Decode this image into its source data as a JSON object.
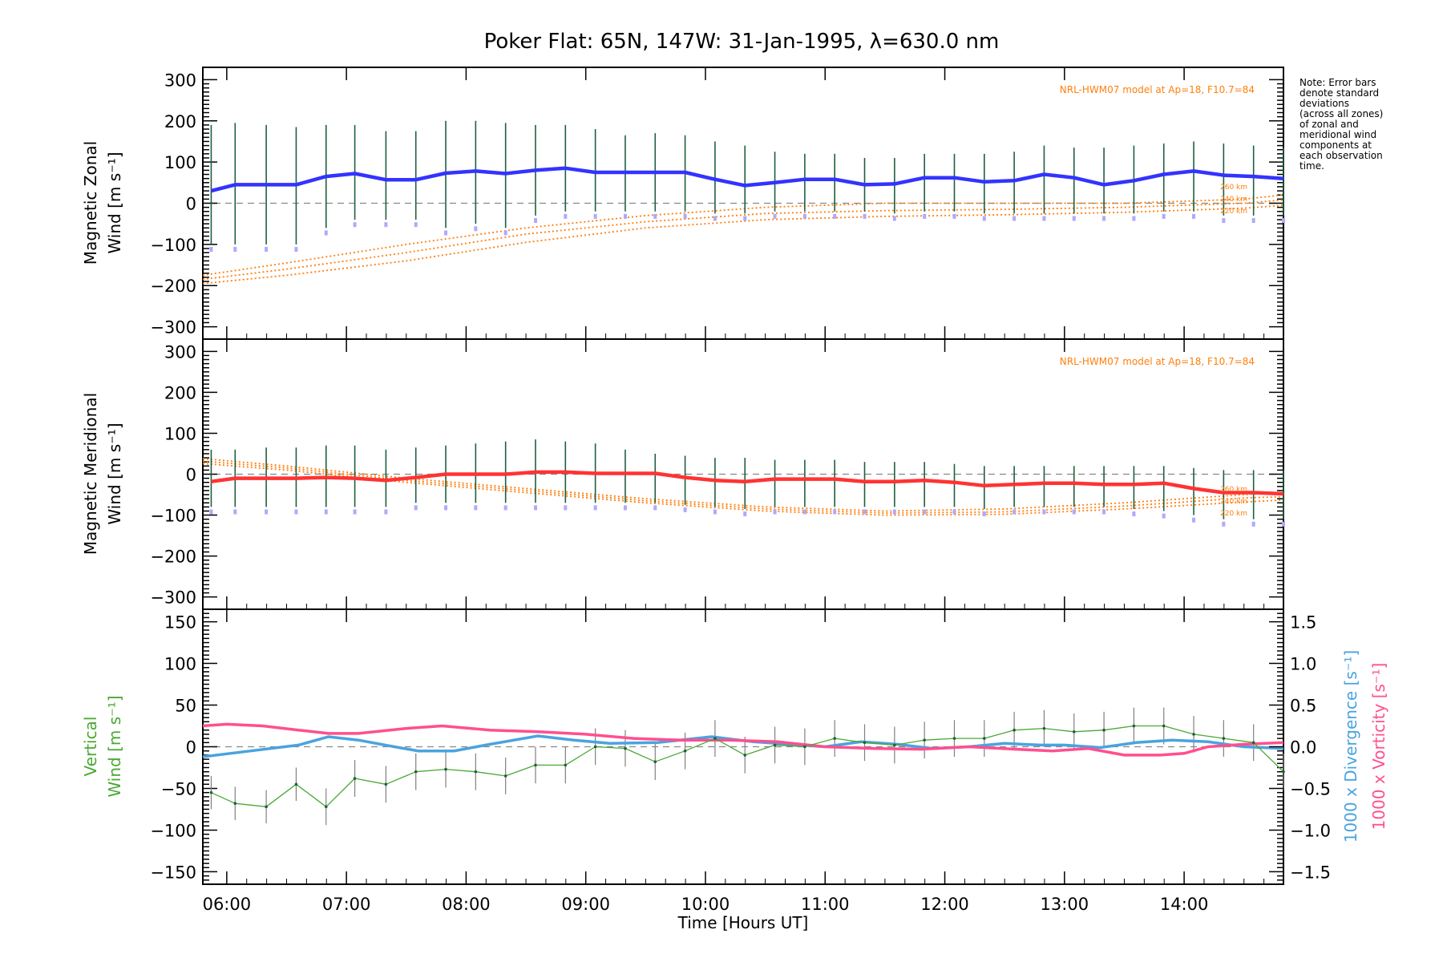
{
  "chart_data": [
    {
      "type": "line",
      "title": "Poker Flat: 65N, 147W: 31-Jan-1995, λ=630.0 nm",
      "ylabel_line1": "Magnetic Zonal",
      "ylabel_line2": "Wind [m s⁻¹]",
      "ylim": [
        -330,
        330
      ],
      "yticks": [
        "300",
        "200",
        "100",
        "0",
        "−100",
        "−200",
        "−300"
      ],
      "model_label": "NRL-HWM07 model at Ap=18, F10.7=84",
      "altitude_labels": [
        "260 km",
        "240 km",
        "220 km"
      ],
      "note": [
        "Note: Error bars",
        "denote standard",
        "deviations",
        "(across all zones)",
        "of zonal and",
        "meridional wind",
        "components at",
        "each observation",
        "time."
      ],
      "colors": {
        "wind": "#3333ff",
        "model": "#ff7f0e",
        "errorbar": "#1f5f3f",
        "zone_points": "#b0a8ff"
      },
      "series": [
        {
          "x": [
            5.87,
            6.07,
            6.33,
            6.58,
            6.83,
            7.07,
            7.33,
            7.58,
            7.83,
            8.08,
            8.33,
            8.58,
            8.83,
            9.08,
            9.33,
            9.58,
            9.83,
            10.08,
            10.33,
            10.58,
            10.83,
            11.08,
            11.33,
            11.58,
            11.83,
            12.08,
            12.33,
            12.58,
            12.83,
            13.08,
            13.33,
            13.58,
            13.83,
            14.08,
            14.33,
            14.58,
            14.83
          ],
          "values": [
            30,
            45,
            45,
            45,
            65,
            72,
            57,
            57,
            73,
            78,
            72,
            80,
            85,
            75,
            75,
            75,
            75,
            58,
            43,
            50,
            58,
            58,
            45,
            47,
            62,
            62,
            52,
            55,
            70,
            62,
            45,
            55,
            70,
            78,
            68,
            65,
            60
          ],
          "err_lo": [
            -100,
            -100,
            -100,
            -100,
            -60,
            -40,
            -40,
            -40,
            -60,
            -50,
            -60,
            -30,
            -20,
            -20,
            -20,
            -20,
            -20,
            -25,
            -25,
            -20,
            -20,
            -20,
            -20,
            -25,
            -20,
            -20,
            -25,
            -25,
            -25,
            -25,
            -25,
            -25,
            -20,
            -20,
            -30,
            -30,
            -30
          ],
          "err_hi": [
            190,
            195,
            190,
            185,
            190,
            190,
            175,
            175,
            200,
            200,
            195,
            190,
            190,
            180,
            165,
            170,
            165,
            150,
            140,
            125,
            120,
            120,
            110,
            110,
            120,
            120,
            120,
            125,
            140,
            135,
            135,
            140,
            145,
            150,
            145,
            140,
            135
          ]
        }
      ],
      "model": {
        "x": [
          5.8,
          6.5,
          7.5,
          8.5,
          9.5,
          10.5,
          11.5,
          12.5,
          13.5,
          14.5,
          14.83
        ],
        "alt_260": [
          -175,
          -145,
          -100,
          -60,
          -30,
          -10,
          0,
          0,
          0,
          10,
          20
        ],
        "alt_240": [
          -185,
          -160,
          -120,
          -75,
          -45,
          -25,
          -18,
          -15,
          -10,
          0,
          8
        ],
        "alt_220": [
          -195,
          -175,
          -140,
          -95,
          -60,
          -40,
          -32,
          -28,
          -22,
          -12,
          -5
        ]
      }
    },
    {
      "type": "line",
      "ylabel_line1": "Magnetic Meridional",
      "ylabel_line2": "Wind [m s⁻¹]",
      "ylim": [
        -330,
        330
      ],
      "yticks": [
        "300",
        "200",
        "100",
        "0",
        "−100",
        "−200",
        "−300"
      ],
      "model_label": "NRL-HWM07 model at Ap=18, F10.7=84",
      "altitude_labels": [
        "260 km",
        "240 km",
        "220 km"
      ],
      "colors": {
        "wind": "#ff3333",
        "model": "#ff7f0e",
        "errorbar": "#1f5f3f",
        "zone_points": "#b0a8ff"
      },
      "series": [
        {
          "x": [
            5.87,
            6.07,
            6.33,
            6.58,
            6.83,
            7.07,
            7.33,
            7.58,
            7.83,
            8.08,
            8.33,
            8.58,
            8.83,
            9.08,
            9.33,
            9.58,
            9.83,
            10.08,
            10.33,
            10.58,
            10.83,
            11.08,
            11.33,
            11.58,
            11.83,
            12.08,
            12.33,
            12.58,
            12.83,
            13.08,
            13.33,
            13.58,
            13.83,
            14.08,
            14.33,
            14.58,
            14.83
          ],
          "values": [
            -18,
            -10,
            -10,
            -10,
            -8,
            -10,
            -15,
            -8,
            0,
            0,
            0,
            5,
            5,
            2,
            2,
            2,
            -8,
            -15,
            -18,
            -12,
            -12,
            -12,
            -18,
            -18,
            -15,
            -20,
            -28,
            -25,
            -22,
            -22,
            -25,
            -25,
            -22,
            -35,
            -45,
            -45,
            -48
          ],
          "err_lo": [
            -80,
            -80,
            -80,
            -80,
            -80,
            -80,
            -80,
            -70,
            -70,
            -70,
            -70,
            -70,
            -70,
            -70,
            -70,
            -70,
            -75,
            -80,
            -85,
            -80,
            -80,
            -80,
            -80,
            -80,
            -80,
            -80,
            -85,
            -80,
            -80,
            -80,
            -80,
            -85,
            -90,
            -100,
            -110,
            -110,
            -110
          ],
          "err_hi": [
            60,
            60,
            65,
            65,
            70,
            70,
            60,
            65,
            70,
            75,
            80,
            85,
            80,
            75,
            60,
            50,
            45,
            40,
            40,
            35,
            35,
            35,
            30,
            30,
            30,
            25,
            20,
            20,
            20,
            20,
            20,
            20,
            20,
            15,
            10,
            10,
            10
          ]
        }
      ],
      "model": {
        "x": [
          5.8,
          6.5,
          7.5,
          8.5,
          9.5,
          10.5,
          11.5,
          12.5,
          13.5,
          14.5,
          14.83
        ],
        "alt_260": [
          38,
          20,
          -10,
          -35,
          -60,
          -80,
          -90,
          -85,
          -70,
          -50,
          -45
        ],
        "alt_240": [
          32,
          15,
          -15,
          -40,
          -65,
          -85,
          -95,
          -92,
          -78,
          -58,
          -55
        ],
        "alt_220": [
          26,
          10,
          -20,
          -45,
          -70,
          -90,
          -100,
          -98,
          -85,
          -68,
          -63
        ]
      }
    },
    {
      "type": "line",
      "ylabel_left_line1": "Vertical",
      "ylabel_left_line2": "Wind [m s⁻¹]",
      "ylabel_right_1": "1000 x Divergence [s⁻¹]",
      "ylabel_right_2": "1000 x Vorticity [s⁻¹]",
      "ylim": [
        -165,
        165
      ],
      "ylim_right": [
        -1.65,
        1.65
      ],
      "yticks": [
        "150",
        "100",
        "50",
        "0",
        "−50",
        "−100",
        "−150"
      ],
      "yticks_right": [
        "1.5",
        "1.0",
        "0.5",
        "0.0",
        "−0.5",
        "−1.0",
        "−1.5"
      ],
      "xlabel": "Time [Hours UT]",
      "xticks": [
        "06:00",
        "07:00",
        "08:00",
        "09:00",
        "10:00",
        "11:00",
        "12:00",
        "13:00",
        "14:00"
      ],
      "xlim": [
        5.8,
        14.83
      ],
      "colors": {
        "vertical": "#4aa832",
        "divergence": "#4aa3df",
        "vorticity": "#ff4f8f",
        "errorbar": "#808080"
      },
      "vertical": {
        "x": [
          5.87,
          6.07,
          6.33,
          6.58,
          6.83,
          7.07,
          7.33,
          7.58,
          7.83,
          8.08,
          8.33,
          8.58,
          8.83,
          9.08,
          9.33,
          9.58,
          9.83,
          10.08,
          10.33,
          10.58,
          10.83,
          11.08,
          11.33,
          11.58,
          11.83,
          12.08,
          12.33,
          12.58,
          12.83,
          13.08,
          13.33,
          13.58,
          13.83,
          14.08,
          14.33,
          14.58,
          14.83
        ],
        "values": [
          -55,
          -68,
          -72,
          -45,
          -72,
          -38,
          -45,
          -30,
          -27,
          -30,
          -35,
          -22,
          -22,
          0,
          -2,
          -18,
          -5,
          10,
          -10,
          2,
          0,
          10,
          5,
          2,
          8,
          10,
          10,
          20,
          22,
          18,
          20,
          25,
          25,
          15,
          10,
          5,
          -30
        ],
        "err": [
          20,
          20,
          20,
          20,
          22,
          22,
          22,
          22,
          22,
          22,
          22,
          22,
          22,
          22,
          22,
          22,
          22,
          22,
          22,
          22,
          22,
          22,
          22,
          22,
          22,
          22,
          22,
          22,
          22,
          22,
          22,
          22,
          22,
          22,
          22,
          22,
          22
        ]
      },
      "divergence": {
        "x": [
          5.8,
          6.2,
          6.6,
          6.85,
          7.1,
          7.4,
          7.6,
          7.9,
          8.2,
          8.6,
          8.9,
          9.2,
          9.6,
          10.05,
          10.4,
          10.8,
          11.0,
          11.3,
          11.6,
          11.9,
          12.2,
          12.5,
          12.8,
          13.0,
          13.3,
          13.6,
          13.9,
          14.2,
          14.5,
          14.83
        ],
        "values": [
          -0.12,
          -0.05,
          0.02,
          0.12,
          0.08,
          0.0,
          -0.05,
          -0.05,
          0.03,
          0.13,
          0.08,
          0.04,
          0.05,
          0.12,
          0.06,
          0.02,
          0.0,
          0.06,
          0.03,
          -0.02,
          0.0,
          0.04,
          0.02,
          0.02,
          -0.01,
          0.05,
          0.08,
          0.06,
          0.0,
          -0.02
        ]
      },
      "vorticity": {
        "x": [
          5.8,
          6.0,
          6.3,
          6.6,
          6.85,
          7.1,
          7.5,
          7.8,
          8.2,
          8.6,
          9.0,
          9.4,
          9.8,
          10.2,
          10.6,
          11.0,
          11.4,
          11.8,
          12.2,
          12.6,
          12.9,
          13.2,
          13.5,
          13.8,
          14.0,
          14.2,
          14.5,
          14.83
        ],
        "values": [
          0.25,
          0.27,
          0.25,
          0.2,
          0.16,
          0.16,
          0.22,
          0.25,
          0.2,
          0.18,
          0.15,
          0.1,
          0.08,
          0.08,
          0.06,
          0.0,
          -0.02,
          -0.03,
          0.0,
          -0.03,
          -0.05,
          -0.02,
          -0.1,
          -0.1,
          -0.08,
          0.0,
          0.03,
          0.05
        ]
      }
    }
  ]
}
